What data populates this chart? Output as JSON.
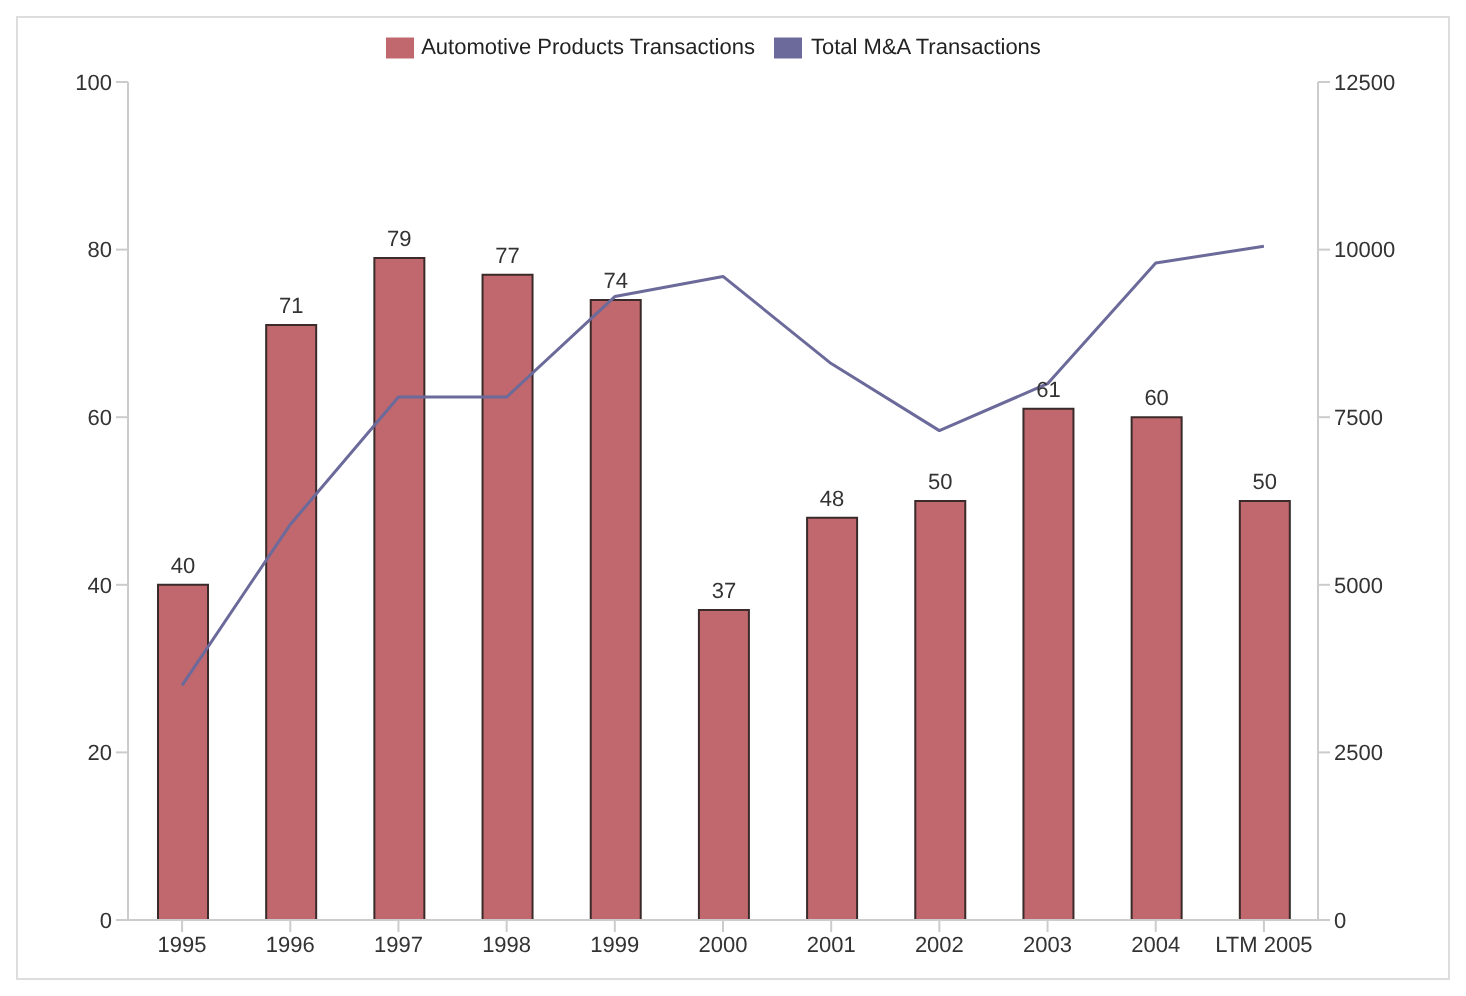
{
  "chart_data": {
    "type": "bar",
    "categories": [
      "1995",
      "1996",
      "1997",
      "1998",
      "1999",
      "2000",
      "2001",
      "2002",
      "2003",
      "2004",
      "LTM 2005"
    ],
    "series": [
      {
        "name": "Automotive Products Transactions",
        "color": "#c0686e",
        "values": [
          40,
          71,
          79,
          77,
          74,
          37,
          48,
          50,
          61,
          60,
          50
        ],
        "value_labels": [
          "40",
          "71",
          "79",
          "77",
          "74",
          "37",
          "48",
          "50",
          "61",
          "60",
          "50"
        ]
      },
      {
        "name": "Total M&A Transactions",
        "type": "line",
        "axis": "y2",
        "color": "#6b6a9a",
        "values": [
          3500,
          5900,
          7800,
          7800,
          9300,
          9600,
          8300,
          7300,
          8000,
          9800,
          10050
        ]
      }
    ],
    "ylim": [
      0,
      100
    ],
    "yticks": [
      0,
      20,
      40,
      60,
      80,
      100
    ],
    "y2lim": [
      0,
      12500
    ],
    "y2ticks": [
      0,
      2500,
      5000,
      7500,
      10000,
      12500
    ],
    "legend": "top",
    "grid": false,
    "marker": "none"
  }
}
